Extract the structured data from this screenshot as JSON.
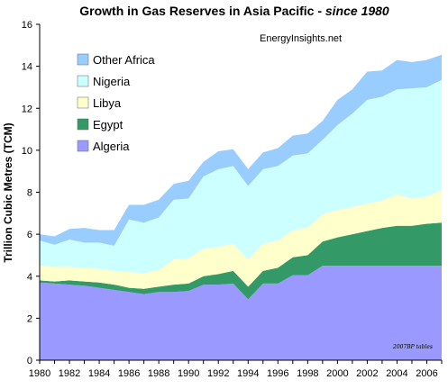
{
  "chart_data": {
    "type": "area",
    "stacked": true,
    "title": "Growth in Gas Reserves in Asia Pacific - ",
    "title_emphasis": "since 1980",
    "ylabel": "Trillion Cubic Metres  (TCM)",
    "xlabel": "",
    "ylim": [
      0,
      16
    ],
    "xlim": [
      1980,
      2007
    ],
    "y_ticks": [
      "0",
      "2",
      "4",
      "6",
      "8",
      "10",
      "12",
      "14",
      "16"
    ],
    "x_ticks": [
      "1980",
      "1982",
      "1984",
      "1986",
      "1988",
      "1990",
      "1992",
      "1994",
      "1996",
      "1998",
      "2000",
      "2002",
      "2004",
      "2006"
    ],
    "grid": false,
    "legend_position": "top-left",
    "watermark": "EnergyInsights.net",
    "source_note": "2007BP tables",
    "x": [
      1980,
      1981,
      1982,
      1983,
      1984,
      1985,
      1986,
      1987,
      1988,
      1989,
      1990,
      1991,
      1992,
      1993,
      1994,
      1995,
      1996,
      1997,
      1998,
      1999,
      2000,
      2001,
      2002,
      2003,
      2004,
      2005,
      2006,
      2007
    ],
    "series": [
      {
        "name": "Algeria",
        "color": "#9999ff",
        "values": [
          3.7,
          3.65,
          3.6,
          3.55,
          3.45,
          3.35,
          3.25,
          3.15,
          3.25,
          3.25,
          3.3,
          3.6,
          3.6,
          3.65,
          2.9,
          3.65,
          3.65,
          4.05,
          4.05,
          4.5,
          4.5,
          4.5,
          4.5,
          4.5,
          4.5,
          4.5,
          4.5,
          4.5
        ]
      },
      {
        "name": "Egypt",
        "color": "#339966",
        "values": [
          0.1,
          0.1,
          0.2,
          0.2,
          0.25,
          0.25,
          0.2,
          0.25,
          0.25,
          0.35,
          0.35,
          0.4,
          0.5,
          0.6,
          0.6,
          0.6,
          0.75,
          0.85,
          0.95,
          1.15,
          1.35,
          1.5,
          1.65,
          1.8,
          1.9,
          1.9,
          2.0,
          2.05
        ]
      },
      {
        "name": "Libya",
        "color": "#ffffcc",
        "values": [
          0.7,
          0.7,
          0.65,
          0.65,
          0.65,
          0.65,
          0.75,
          0.75,
          0.8,
          1.2,
          1.2,
          1.3,
          1.3,
          1.3,
          1.3,
          1.3,
          1.3,
          1.3,
          1.3,
          1.3,
          1.3,
          1.3,
          1.3,
          1.3,
          1.5,
          1.3,
          1.3,
          1.55
        ]
      },
      {
        "name": "Nigeria",
        "color": "#ccffff",
        "values": [
          1.2,
          1.05,
          1.3,
          1.2,
          1.25,
          1.2,
          2.5,
          2.4,
          2.5,
          2.85,
          2.85,
          3.45,
          3.7,
          3.7,
          3.5,
          3.55,
          3.55,
          3.55,
          3.55,
          3.55,
          4.05,
          4.45,
          4.95,
          4.95,
          5.0,
          5.25,
          5.2,
          5.25
        ]
      },
      {
        "name": "Other Africa",
        "color": "#99ccff",
        "values": [
          0.3,
          0.4,
          0.5,
          0.7,
          0.6,
          0.75,
          0.7,
          0.85,
          0.85,
          0.75,
          0.85,
          0.7,
          0.85,
          0.8,
          0.8,
          0.8,
          0.85,
          0.95,
          0.95,
          0.9,
          1.2,
          1.15,
          1.35,
          1.25,
          1.4,
          1.25,
          1.3,
          1.2
        ]
      }
    ]
  }
}
